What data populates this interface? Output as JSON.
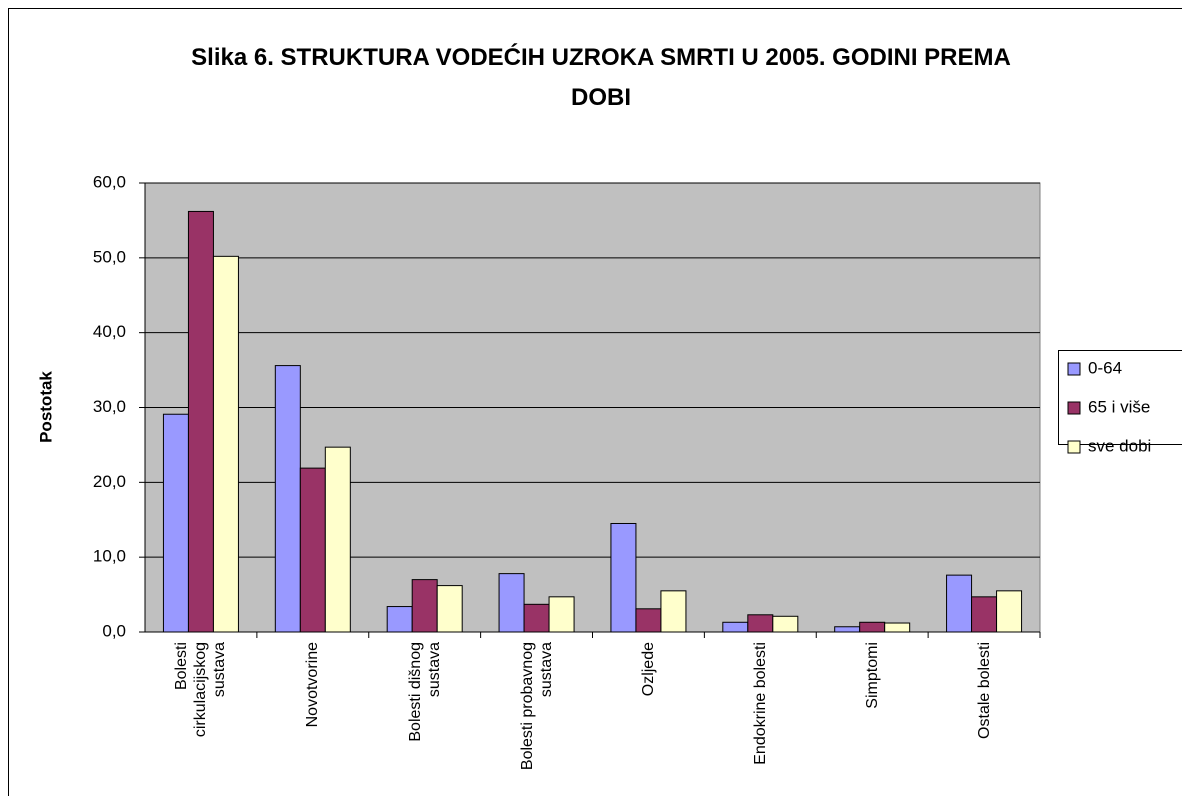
{
  "chart_data": {
    "type": "bar",
    "title": "Slika 6. STRUKTURA VODEĆIH UZROKA SMRTI U 2005. GODINI PREMA DOBI",
    "ylabel": "Postotak",
    "categories": [
      "Bolesti cirkulacijskog sustava",
      "Novotvorine",
      "Bolesti dišnog sustava",
      "Bolesti probavnog sustava",
      "Ozljede",
      "Endokrine bolesti",
      "Simptomi",
      "Ostale bolesti"
    ],
    "series": [
      {
        "name": "0-64",
        "color": "#9999ff",
        "values": [
          29.1,
          35.6,
          3.4,
          7.8,
          14.5,
          1.3,
          0.7,
          7.6
        ]
      },
      {
        "name": "65 i više",
        "color": "#993366",
        "values": [
          56.2,
          21.9,
          7.0,
          3.7,
          3.1,
          2.3,
          1.3,
          4.7
        ]
      },
      {
        "name": "sve dobi",
        "color": "#ffffcc",
        "values": [
          50.2,
          24.7,
          6.2,
          4.7,
          5.5,
          2.1,
          1.2,
          5.5
        ]
      }
    ],
    "ylim": [
      0,
      60
    ],
    "yticks": [
      {
        "value": 0,
        "label": "0,0"
      },
      {
        "value": 10,
        "label": "10,0"
      },
      {
        "value": 20,
        "label": "20,0"
      },
      {
        "value": 30,
        "label": "30,0"
      },
      {
        "value": 40,
        "label": "40,0"
      },
      {
        "value": 50,
        "label": "50,0"
      },
      {
        "value": 60,
        "label": "60,0"
      }
    ],
    "grid": true,
    "legend": "right"
  }
}
